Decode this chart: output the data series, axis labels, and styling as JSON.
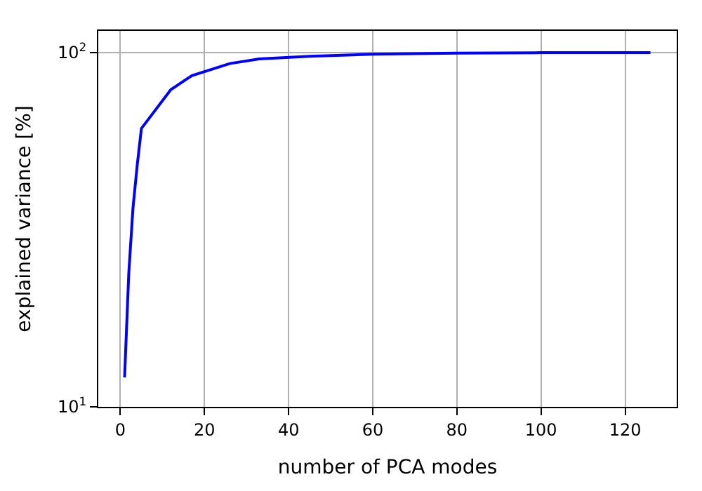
{
  "chart_data": {
    "type": "line",
    "xlabel": "number of PCA modes",
    "ylabel": "explained variance [%]",
    "x": [
      1,
      2,
      3,
      4,
      5,
      12,
      17,
      26,
      33,
      45,
      60,
      80,
      100,
      126
    ],
    "series": [
      {
        "color": "#0000ff",
        "values": [
          12.1,
          23.8,
          36.4,
          48,
          61,
          78.5,
          86,
          93,
          95.8,
          97.5,
          98.8,
          99.5,
          99.8,
          99.9
        ]
      }
    ],
    "xlim": [
      -5.25,
      132.25
    ],
    "xticks": [
      0,
      20,
      40,
      60,
      80,
      100,
      120
    ],
    "ylim": [
      10,
      115
    ],
    "yticks": [
      {
        "value": 10,
        "label": "10$^{1}$"
      },
      {
        "value": 100,
        "label": "10$^{2}$"
      }
    ],
    "log": "y",
    "grid": true,
    "marker": "none",
    "line_style": "solid"
  }
}
